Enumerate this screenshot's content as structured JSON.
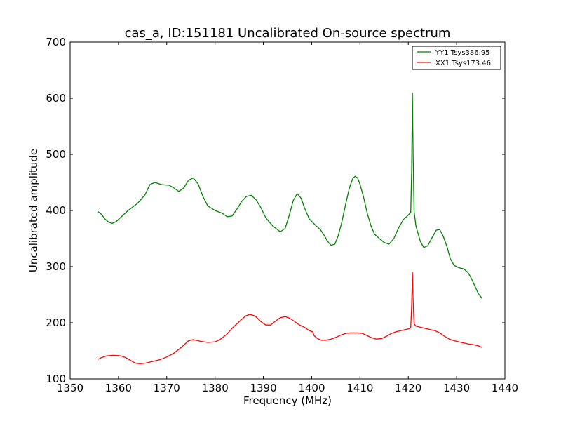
{
  "chart_data": {
    "type": "line",
    "title": "cas_a, ID:151181 Uncalibrated On-source spectrum",
    "xlabel": "Frequency (MHz)",
    "ylabel": "Uncalibrated amplitude",
    "xlim": [
      1350,
      1440
    ],
    "ylim": [
      100,
      700
    ],
    "xticks": [
      1350,
      1360,
      1370,
      1380,
      1390,
      1400,
      1410,
      1420,
      1430,
      1440
    ],
    "yticks": [
      100,
      200,
      300,
      400,
      500,
      600,
      700
    ],
    "grid": false,
    "legend_position": "top-right",
    "series": [
      {
        "name": "YY1 Tsys386.95",
        "color": "#008000",
        "points": [
          [
            1355.8,
            398
          ],
          [
            1356.5,
            393
          ],
          [
            1357.2,
            385
          ],
          [
            1358,
            379
          ],
          [
            1358.7,
            377
          ],
          [
            1359.5,
            380
          ],
          [
            1360.5,
            388
          ],
          [
            1362,
            400
          ],
          [
            1364,
            413
          ],
          [
            1365.5,
            428
          ],
          [
            1366.5,
            446
          ],
          [
            1367.5,
            450
          ],
          [
            1369,
            446
          ],
          [
            1370.5,
            445
          ],
          [
            1371.5,
            440
          ],
          [
            1372.5,
            434
          ],
          [
            1373.5,
            440
          ],
          [
            1374.5,
            454
          ],
          [
            1375.5,
            458
          ],
          [
            1376.5,
            447
          ],
          [
            1377.5,
            425
          ],
          [
            1378.5,
            408
          ],
          [
            1380,
            400
          ],
          [
            1381.5,
            395
          ],
          [
            1382.5,
            389
          ],
          [
            1383.5,
            390
          ],
          [
            1384.5,
            402
          ],
          [
            1385.5,
            416
          ],
          [
            1386.5,
            425
          ],
          [
            1387.5,
            427
          ],
          [
            1388.5,
            419
          ],
          [
            1389.5,
            405
          ],
          [
            1390.5,
            387
          ],
          [
            1392,
            372
          ],
          [
            1393.5,
            362
          ],
          [
            1394.5,
            368
          ],
          [
            1395.3,
            390
          ],
          [
            1396.2,
            418
          ],
          [
            1397,
            430
          ],
          [
            1397.8,
            422
          ],
          [
            1398.5,
            405
          ],
          [
            1399.5,
            385
          ],
          [
            1400.3,
            378
          ],
          [
            1401,
            372
          ],
          [
            1401.8,
            366
          ],
          [
            1402.5,
            357
          ],
          [
            1403.3,
            345
          ],
          [
            1404,
            338
          ],
          [
            1404.8,
            340
          ],
          [
            1405.5,
            355
          ],
          [
            1406.2,
            378
          ],
          [
            1407,
            410
          ],
          [
            1407.8,
            440
          ],
          [
            1408.5,
            457
          ],
          [
            1409,
            461
          ],
          [
            1409.5,
            458
          ],
          [
            1410,
            447
          ],
          [
            1410.7,
            425
          ],
          [
            1411.5,
            395
          ],
          [
            1412.3,
            372
          ],
          [
            1413,
            358
          ],
          [
            1414,
            350
          ],
          [
            1415,
            343
          ],
          [
            1416,
            340
          ],
          [
            1417,
            350
          ],
          [
            1418,
            369
          ],
          [
            1419,
            384
          ],
          [
            1420,
            392
          ],
          [
            1420.5,
            397
          ],
          [
            1420.7,
            470
          ],
          [
            1420.85,
            609
          ],
          [
            1421,
            500
          ],
          [
            1421.2,
            398
          ],
          [
            1421.6,
            372
          ],
          [
            1422.5,
            345
          ],
          [
            1423.2,
            334
          ],
          [
            1424,
            337
          ],
          [
            1425,
            353
          ],
          [
            1425.8,
            365
          ],
          [
            1426.5,
            366
          ],
          [
            1427.2,
            355
          ],
          [
            1428,
            336
          ],
          [
            1428.7,
            314
          ],
          [
            1429.5,
            302
          ],
          [
            1430.5,
            298
          ],
          [
            1431.5,
            296
          ],
          [
            1432.3,
            290
          ],
          [
            1433,
            280
          ],
          [
            1433.8,
            265
          ],
          [
            1434.5,
            252
          ],
          [
            1435.3,
            243
          ]
        ]
      },
      {
        "name": "XX1 Tsys173.46",
        "color": "#ff0000",
        "points": [
          [
            1355.8,
            135
          ],
          [
            1356.5,
            138
          ],
          [
            1357.5,
            141
          ],
          [
            1359,
            142
          ],
          [
            1360.5,
            141
          ],
          [
            1361.5,
            138
          ],
          [
            1362.5,
            133
          ],
          [
            1363.5,
            128
          ],
          [
            1364.5,
            127
          ],
          [
            1365.5,
            128
          ],
          [
            1367,
            131
          ],
          [
            1368.5,
            134
          ],
          [
            1370,
            139
          ],
          [
            1371.5,
            146
          ],
          [
            1373,
            156
          ],
          [
            1374.5,
            168
          ],
          [
            1375.5,
            170
          ],
          [
            1377,
            167
          ],
          [
            1378.5,
            165
          ],
          [
            1380,
            166
          ],
          [
            1381,
            170
          ],
          [
            1382.5,
            180
          ],
          [
            1383.5,
            190
          ],
          [
            1385,
            202
          ],
          [
            1386.3,
            212
          ],
          [
            1387.2,
            215
          ],
          [
            1388.3,
            212
          ],
          [
            1389.5,
            202
          ],
          [
            1390.5,
            196
          ],
          [
            1391.5,
            196
          ],
          [
            1392.5,
            203
          ],
          [
            1393.5,
            209
          ],
          [
            1394.5,
            211
          ],
          [
            1395.5,
            208
          ],
          [
            1396.5,
            202
          ],
          [
            1397.5,
            196
          ],
          [
            1398.5,
            192
          ],
          [
            1399.5,
            186
          ],
          [
            1400.2,
            184
          ],
          [
            1400.5,
            177
          ],
          [
            1401.2,
            172
          ],
          [
            1402,
            169
          ],
          [
            1403,
            169
          ],
          [
            1404,
            171
          ],
          [
            1405,
            174
          ],
          [
            1406,
            178
          ],
          [
            1407,
            181
          ],
          [
            1408,
            182
          ],
          [
            1409.5,
            182
          ],
          [
            1410.5,
            181
          ],
          [
            1411.5,
            177
          ],
          [
            1412.5,
            173
          ],
          [
            1413.5,
            171
          ],
          [
            1414.5,
            172
          ],
          [
            1415.5,
            176
          ],
          [
            1416.5,
            181
          ],
          [
            1417.5,
            184
          ],
          [
            1419,
            187
          ],
          [
            1420,
            189
          ],
          [
            1420.5,
            191
          ],
          [
            1420.7,
            230
          ],
          [
            1420.85,
            290
          ],
          [
            1421,
            240
          ],
          [
            1421.2,
            198
          ],
          [
            1421.6,
            194
          ],
          [
            1422.5,
            192
          ],
          [
            1423.5,
            190
          ],
          [
            1424.5,
            188
          ],
          [
            1425.5,
            186
          ],
          [
            1426.5,
            182
          ],
          [
            1427.5,
            176
          ],
          [
            1428.5,
            171
          ],
          [
            1429.5,
            168
          ],
          [
            1430.5,
            166
          ],
          [
            1431.5,
            164
          ],
          [
            1432.5,
            162
          ],
          [
            1433.5,
            161
          ],
          [
            1434.5,
            159
          ],
          [
            1435.3,
            156
          ]
        ]
      }
    ]
  }
}
